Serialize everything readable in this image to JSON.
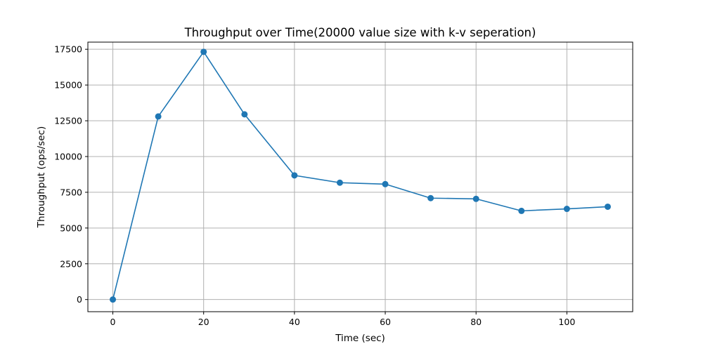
{
  "chart_data": {
    "type": "line",
    "title": "Throughput over Time(20000 value size with k-v seperation)",
    "xlabel": "Time (sec)",
    "ylabel": "Throughput (ops/sec)",
    "xlim": [
      -5.5,
      114.5
    ],
    "ylim": [
      -850,
      18000
    ],
    "xticks": [
      0,
      20,
      40,
      60,
      80,
      100
    ],
    "yticks": [
      0,
      2500,
      5000,
      7500,
      10000,
      12500,
      15000,
      17500
    ],
    "grid": true,
    "series": [
      {
        "color": "#1f77b4",
        "marker": "circle",
        "x": [
          0,
          10,
          20,
          29,
          40,
          50,
          60,
          70,
          80,
          90,
          100,
          109
        ],
        "y": [
          0,
          12800,
          17320,
          12950,
          8680,
          8170,
          8070,
          7090,
          7040,
          6200,
          6340,
          6490
        ]
      }
    ]
  }
}
